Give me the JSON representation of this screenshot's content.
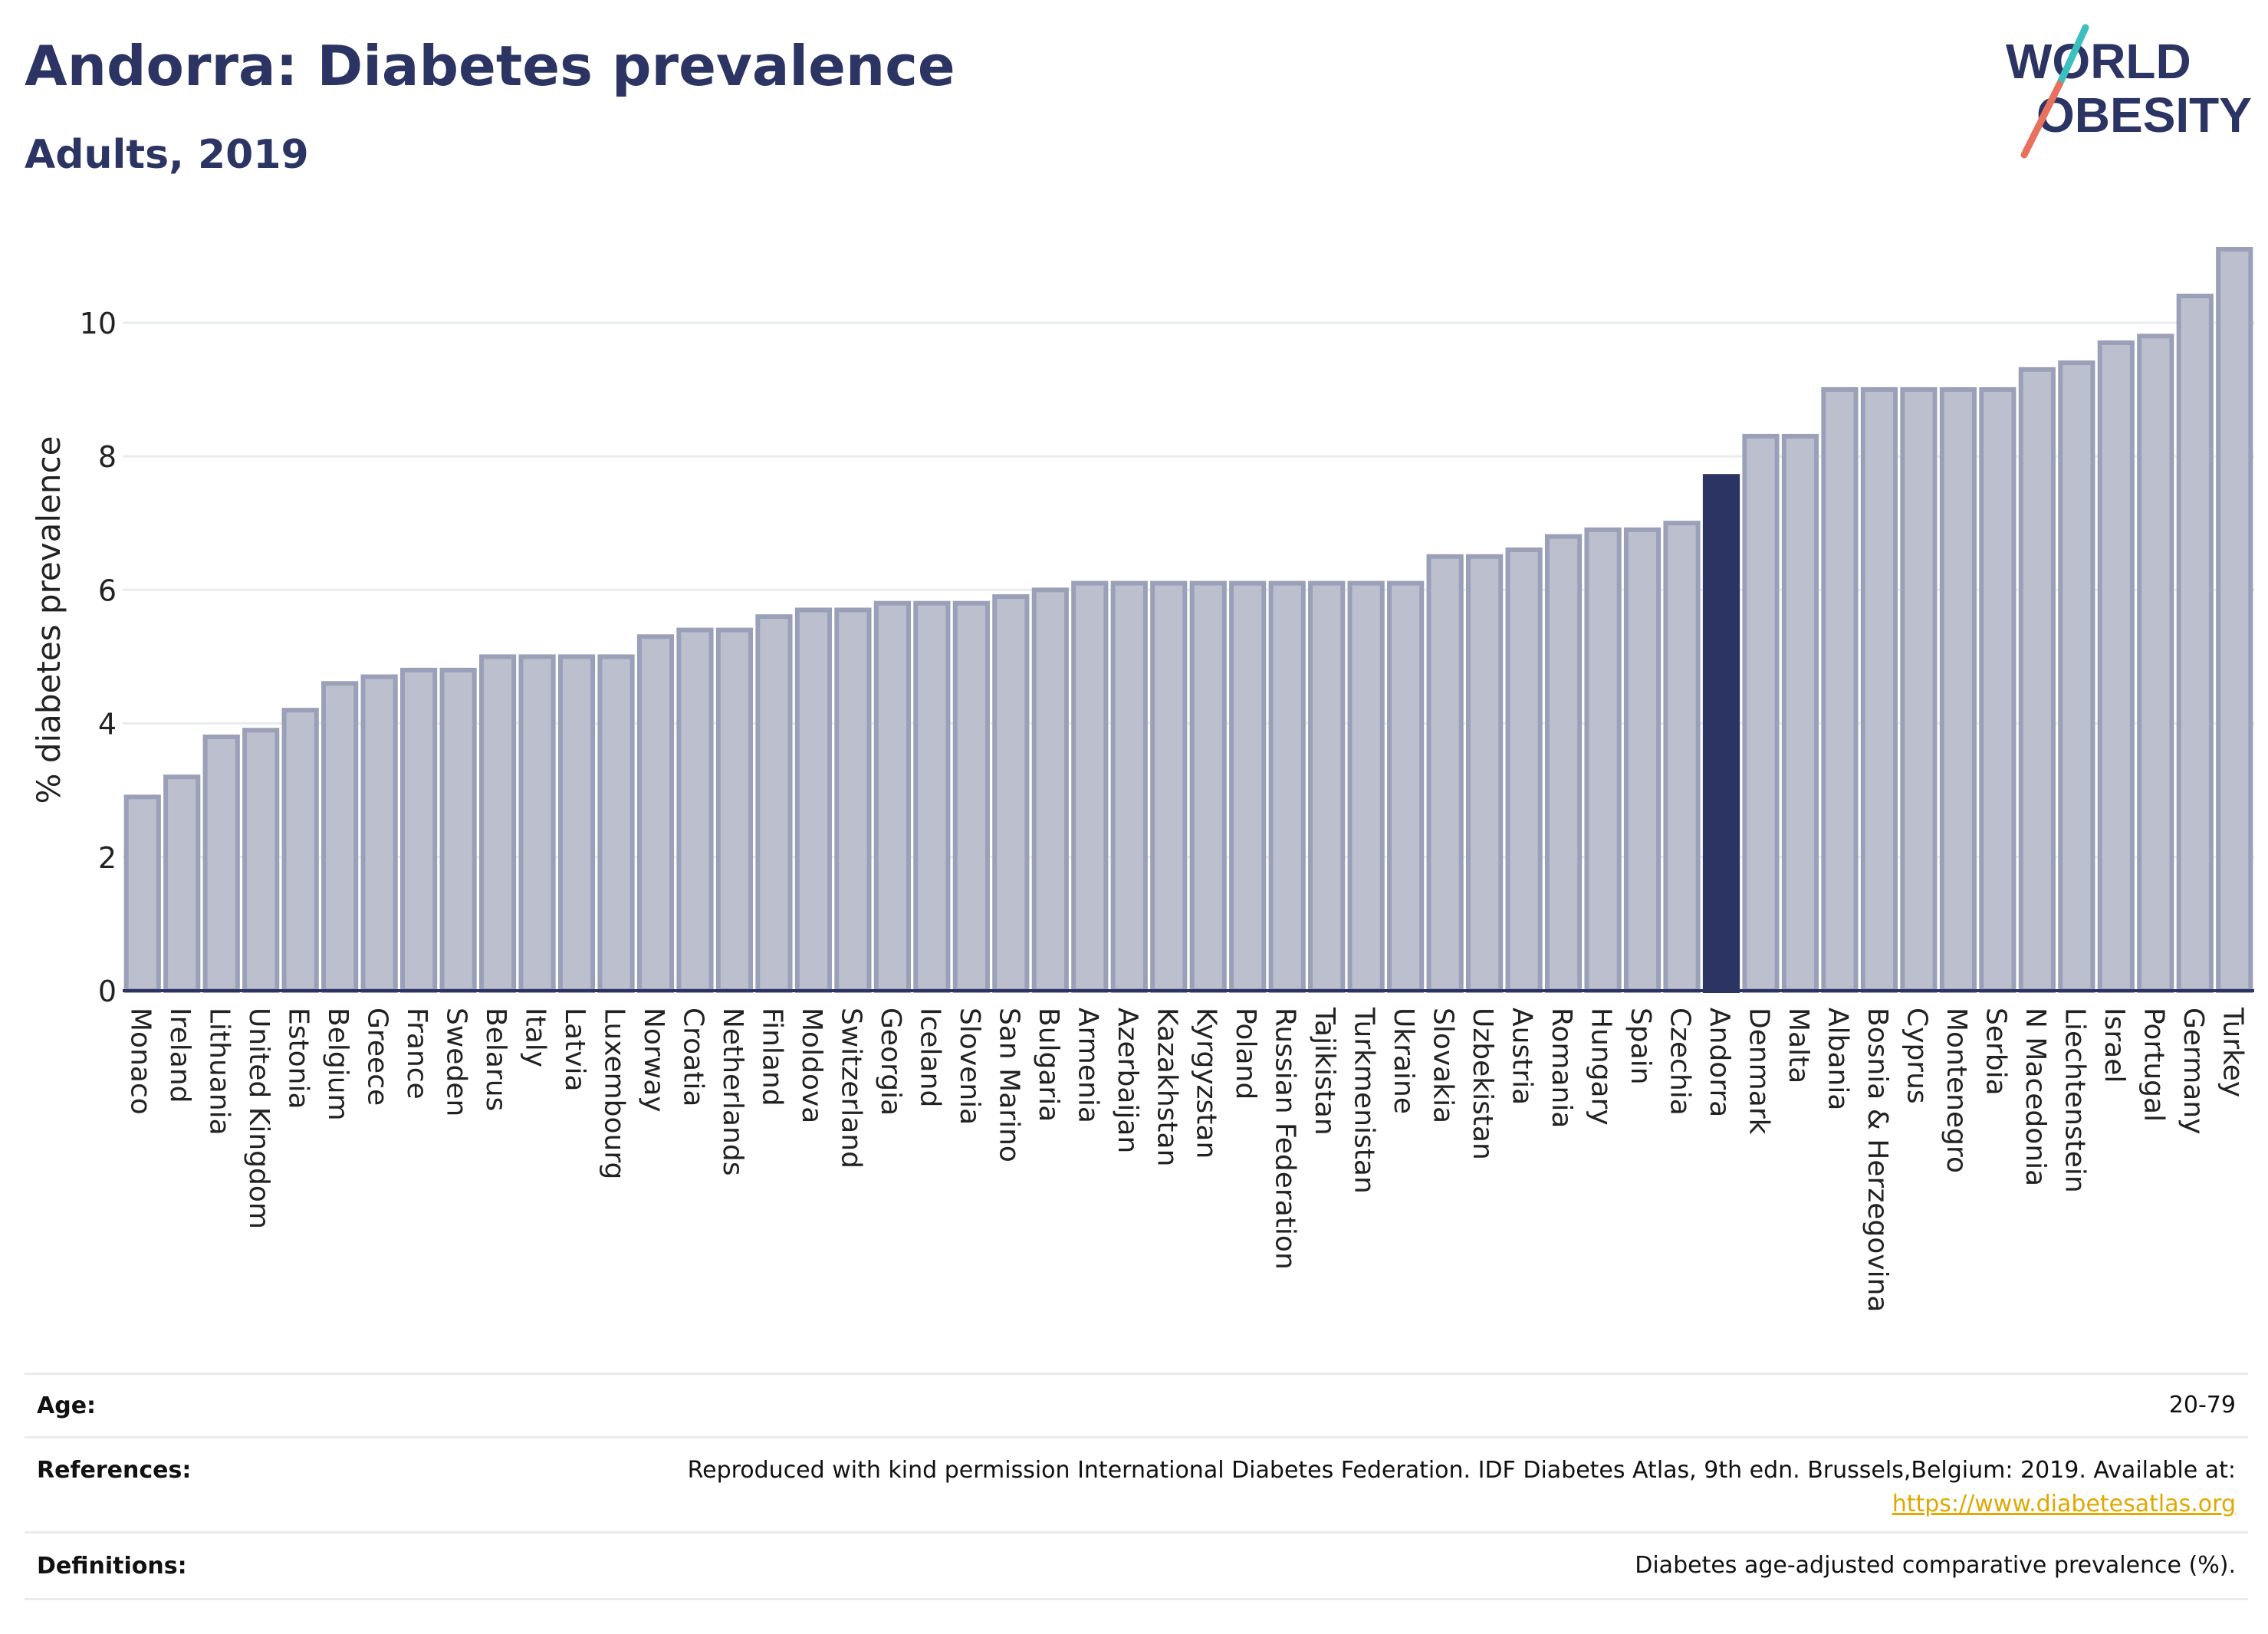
{
  "header": {
    "title": "Andorra: Diabetes prevalence",
    "subtitle": "Adults, 2019",
    "logo_line1": "WORLD",
    "logo_line2": "OBESITY"
  },
  "colors": {
    "bar": "#bcc0ce",
    "bar_edge": "#9aa0b8",
    "highlight": "#2b3462",
    "grid": "#e9ecef",
    "axis": "#2b3462",
    "logo_teal": "#3bbfbf",
    "logo_coral": "#e8715e"
  },
  "chart_data": {
    "type": "bar",
    "title": "Andorra: Diabetes prevalence",
    "subtitle": "Adults, 2019",
    "xlabel": "",
    "ylabel": "% diabetes prevalence",
    "ylim": [
      0,
      11.1
    ],
    "yticks": [
      0,
      2,
      4,
      6,
      8,
      10
    ],
    "grid": true,
    "highlight": "Andorra",
    "categories": [
      "Monaco",
      "Ireland",
      "Lithuania",
      "United Kingdom",
      "Estonia",
      "Belgium",
      "Greece",
      "France",
      "Sweden",
      "Belarus",
      "Italy",
      "Latvia",
      "Luxembourg",
      "Norway",
      "Croatia",
      "Netherlands",
      "Finland",
      "Moldova",
      "Switzerland",
      "Georgia",
      "Iceland",
      "Slovenia",
      "San Marino",
      "Bulgaria",
      "Armenia",
      "Azerbaijan",
      "Kazakhstan",
      "Kyrgyzstan",
      "Poland",
      "Russian Federation",
      "Tajikistan",
      "Turkmenistan",
      "Ukraine",
      "Slovakia",
      "Uzbekistan",
      "Austria",
      "Romania",
      "Hungary",
      "Spain",
      "Czechia",
      "Andorra",
      "Denmark",
      "Malta",
      "Albania",
      "Bosnia & Herzegovina",
      "Cyprus",
      "Montenegro",
      "Serbia",
      "N Macedonia",
      "Liechtenstein",
      "Israel",
      "Portugal",
      "Germany",
      "Turkey"
    ],
    "values": [
      2.9,
      3.2,
      3.8,
      3.9,
      4.2,
      4.6,
      4.7,
      4.8,
      4.8,
      5.0,
      5.0,
      5.0,
      5.0,
      5.3,
      5.4,
      5.4,
      5.6,
      5.7,
      5.7,
      5.8,
      5.8,
      5.8,
      5.9,
      6.0,
      6.1,
      6.1,
      6.1,
      6.1,
      6.1,
      6.1,
      6.1,
      6.1,
      6.1,
      6.5,
      6.5,
      6.6,
      6.8,
      6.9,
      6.9,
      7.0,
      7.7,
      8.3,
      8.3,
      9.0,
      9.0,
      9.0,
      9.0,
      9.0,
      9.3,
      9.4,
      9.7,
      9.8,
      10.4,
      11.1
    ]
  },
  "info": {
    "age_label": "Age:",
    "age_value": "20-79",
    "references_label": "References:",
    "references_text": "Reproduced with kind permission International Diabetes Federation. IDF Diabetes Atlas, 9th edn. Brussels,Belgium: 2019. Available at:",
    "references_link": "https://www.diabetesatlas.org",
    "definitions_label": "Definitions:",
    "definitions_value": "Diabetes age-adjusted comparative prevalence (%)."
  }
}
